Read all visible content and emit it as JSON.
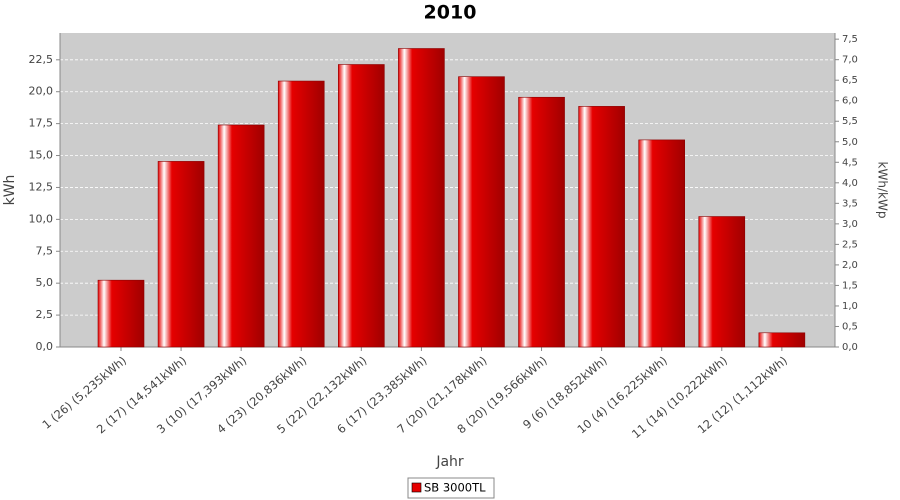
{
  "chart_data": {
    "type": "bar",
    "title": "2010",
    "x_label": "Jahr",
    "y_label": "kWh",
    "y2_label": "kWh/kWp",
    "categories": [
      "1 (26)  (5,235kWh)",
      "2 (17)  (14,541kWh)",
      "3 (10)  (17,393kWh)",
      "4 (23)  (20,836kWh)",
      "5 (22)  (22,132kWh)",
      "6 (17)  (23,385kWh)",
      "7 (20)  (21,178kWh)",
      "8 (20)  (19,566kWh)",
      "9 (6)  (18,852kWh)",
      "10 (4)  (16,225kWh)",
      "11 (14)  (10,222kWh)",
      "12 (12)  (1,112kWh)"
    ],
    "series": [
      {
        "name": "SB 3000TL",
        "color": "#e60000",
        "values": [
          5.235,
          14.541,
          17.393,
          20.836,
          22.132,
          23.385,
          21.178,
          19.566,
          18.852,
          16.225,
          10.222,
          1.112
        ]
      }
    ],
    "ylim": [
      0,
      24.6
    ],
    "yticks": [
      {
        "value": 0,
        "label": "0,0"
      },
      {
        "value": 2.5,
        "label": "2,5"
      },
      {
        "value": 5,
        "label": "5,0"
      },
      {
        "value": 7.5,
        "label": "7,5"
      },
      {
        "value": 10,
        "label": "10,0"
      },
      {
        "value": 12.5,
        "label": "12,5"
      },
      {
        "value": 15,
        "label": "15,0"
      },
      {
        "value": 17.5,
        "label": "17,5"
      },
      {
        "value": 20,
        "label": "20,0"
      },
      {
        "value": 22.5,
        "label": "22,5"
      }
    ],
    "y2lim": [
      0,
      7.65
    ],
    "y2ticks": [
      {
        "value": 0,
        "label": "0,0"
      },
      {
        "value": 0.5,
        "label": "0,5"
      },
      {
        "value": 1,
        "label": "1,0"
      },
      {
        "value": 1.5,
        "label": "1,5"
      },
      {
        "value": 2,
        "label": "2,0"
      },
      {
        "value": 2.5,
        "label": "2,5"
      },
      {
        "value": 3,
        "label": "3,0"
      },
      {
        "value": 3.5,
        "label": "3,5"
      },
      {
        "value": 4,
        "label": "4,0"
      },
      {
        "value": 4.5,
        "label": "4,5"
      },
      {
        "value": 5,
        "label": "5,0"
      },
      {
        "value": 5.5,
        "label": "5,5"
      },
      {
        "value": 6,
        "label": "6,0"
      },
      {
        "value": 6.5,
        "label": "6,5"
      },
      {
        "value": 7,
        "label": "7,0"
      },
      {
        "value": 7.5,
        "label": "7,5"
      }
    ],
    "grid": true,
    "legend": "bottom"
  }
}
